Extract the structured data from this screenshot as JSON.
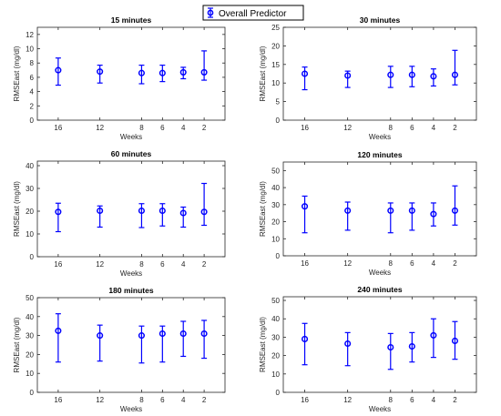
{
  "figure": {
    "legend_label": "Overall Predictor",
    "legend_placement": "top-center",
    "series_color": "#0000ff"
  },
  "chart_data": [
    {
      "type": "scatter",
      "title": "15 minutes",
      "xlabel": "Weeks",
      "ylabel": "RMSEast (mg/dl)",
      "x": [
        16,
        12,
        8,
        6,
        4,
        2
      ],
      "xlim": [
        18,
        0
      ],
      "ylim": [
        0,
        13
      ],
      "yticks": [
        0,
        2,
        4,
        6,
        8,
        10,
        12
      ],
      "series": [
        {
          "name": "Overall Predictor",
          "values": [
            7.0,
            6.8,
            6.6,
            6.6,
            6.7,
            6.7
          ],
          "err_low": [
            4.9,
            5.2,
            5.1,
            5.4,
            5.8,
            5.6
          ],
          "err_high": [
            8.7,
            7.7,
            7.7,
            7.7,
            7.4,
            9.7
          ]
        }
      ],
      "grid": false
    },
    {
      "type": "scatter",
      "title": "30 minutes",
      "xlabel": "Weeks",
      "ylabel": "RMSEast (mg/dl)",
      "x": [
        16,
        12,
        8,
        6,
        4,
        2
      ],
      "xlim": [
        18,
        0
      ],
      "ylim": [
        0,
        25
      ],
      "yticks": [
        0,
        5,
        10,
        15,
        20,
        25
      ],
      "series": [
        {
          "name": "Overall Predictor",
          "values": [
            12.5,
            12.0,
            12.2,
            12.2,
            11.8,
            12.2
          ],
          "err_low": [
            8.2,
            8.8,
            8.8,
            9.0,
            9.2,
            9.5
          ],
          "err_high": [
            14.3,
            13.2,
            14.5,
            14.5,
            13.8,
            18.8
          ]
        }
      ],
      "grid": false
    },
    {
      "type": "scatter",
      "title": "60 minutes",
      "xlabel": "Weeks",
      "ylabel": "RMSEast (mg/dl)",
      "x": [
        16,
        12,
        8,
        6,
        4,
        2
      ],
      "xlim": [
        18,
        0
      ],
      "ylim": [
        0,
        42
      ],
      "yticks": [
        0,
        10,
        20,
        30,
        40
      ],
      "series": [
        {
          "name": "Overall Predictor",
          "values": [
            19.7,
            20.2,
            20.2,
            20.2,
            19.2,
            19.7
          ],
          "err_low": [
            11.0,
            13.0,
            12.8,
            13.5,
            13.0,
            13.8
          ],
          "err_high": [
            23.5,
            22.3,
            23.3,
            23.3,
            21.8,
            32.2
          ]
        }
      ],
      "grid": false
    },
    {
      "type": "scatter",
      "title": "120 minutes",
      "xlabel": "Weeks",
      "ylabel": "RMSEast (mg/dl)",
      "x": [
        16,
        12,
        8,
        6,
        4,
        2
      ],
      "xlim": [
        18,
        0
      ],
      "ylim": [
        0,
        55
      ],
      "yticks": [
        0,
        10,
        20,
        30,
        40,
        50
      ],
      "series": [
        {
          "name": "Overall Predictor",
          "values": [
            29.0,
            26.5,
            26.5,
            26.5,
            24.5,
            26.5
          ],
          "err_low": [
            13.5,
            15.0,
            13.5,
            15.0,
            17.5,
            18.0
          ],
          "err_high": [
            35.0,
            31.5,
            31.0,
            31.0,
            31.0,
            41.0
          ]
        }
      ],
      "grid": false
    },
    {
      "type": "scatter",
      "title": "180 minutes",
      "xlabel": "Weeks",
      "ylabel": "RMSEast (mg/dl)",
      "x": [
        16,
        12,
        8,
        6,
        4,
        2
      ],
      "xlim": [
        18,
        0
      ],
      "ylim": [
        0,
        50
      ],
      "yticks": [
        0,
        10,
        20,
        30,
        40,
        50
      ],
      "series": [
        {
          "name": "Overall Predictor",
          "values": [
            32.5,
            30.0,
            30.0,
            31.0,
            31.0,
            31.0
          ],
          "err_low": [
            16.0,
            16.5,
            15.5,
            16.0,
            19.0,
            18.0
          ],
          "err_high": [
            41.5,
            35.5,
            35.0,
            35.0,
            37.5,
            38.0
          ]
        }
      ],
      "grid": false
    },
    {
      "type": "scatter",
      "title": "240 minutes",
      "xlabel": "Weeks",
      "ylabel": "RMSEast (mg/dl)",
      "x": [
        16,
        12,
        8,
        6,
        4,
        2
      ],
      "xlim": [
        18,
        0
      ],
      "ylim": [
        0,
        52
      ],
      "yticks": [
        0,
        10,
        20,
        30,
        40,
        50
      ],
      "series": [
        {
          "name": "Overall Predictor",
          "values": [
            29.0,
            26.5,
            24.5,
            25.0,
            31.0,
            28.0
          ],
          "err_low": [
            15.0,
            14.5,
            12.5,
            16.5,
            19.0,
            18.0
          ],
          "err_high": [
            37.5,
            32.5,
            32.0,
            32.5,
            40.0,
            38.5
          ]
        }
      ],
      "grid": false
    }
  ]
}
